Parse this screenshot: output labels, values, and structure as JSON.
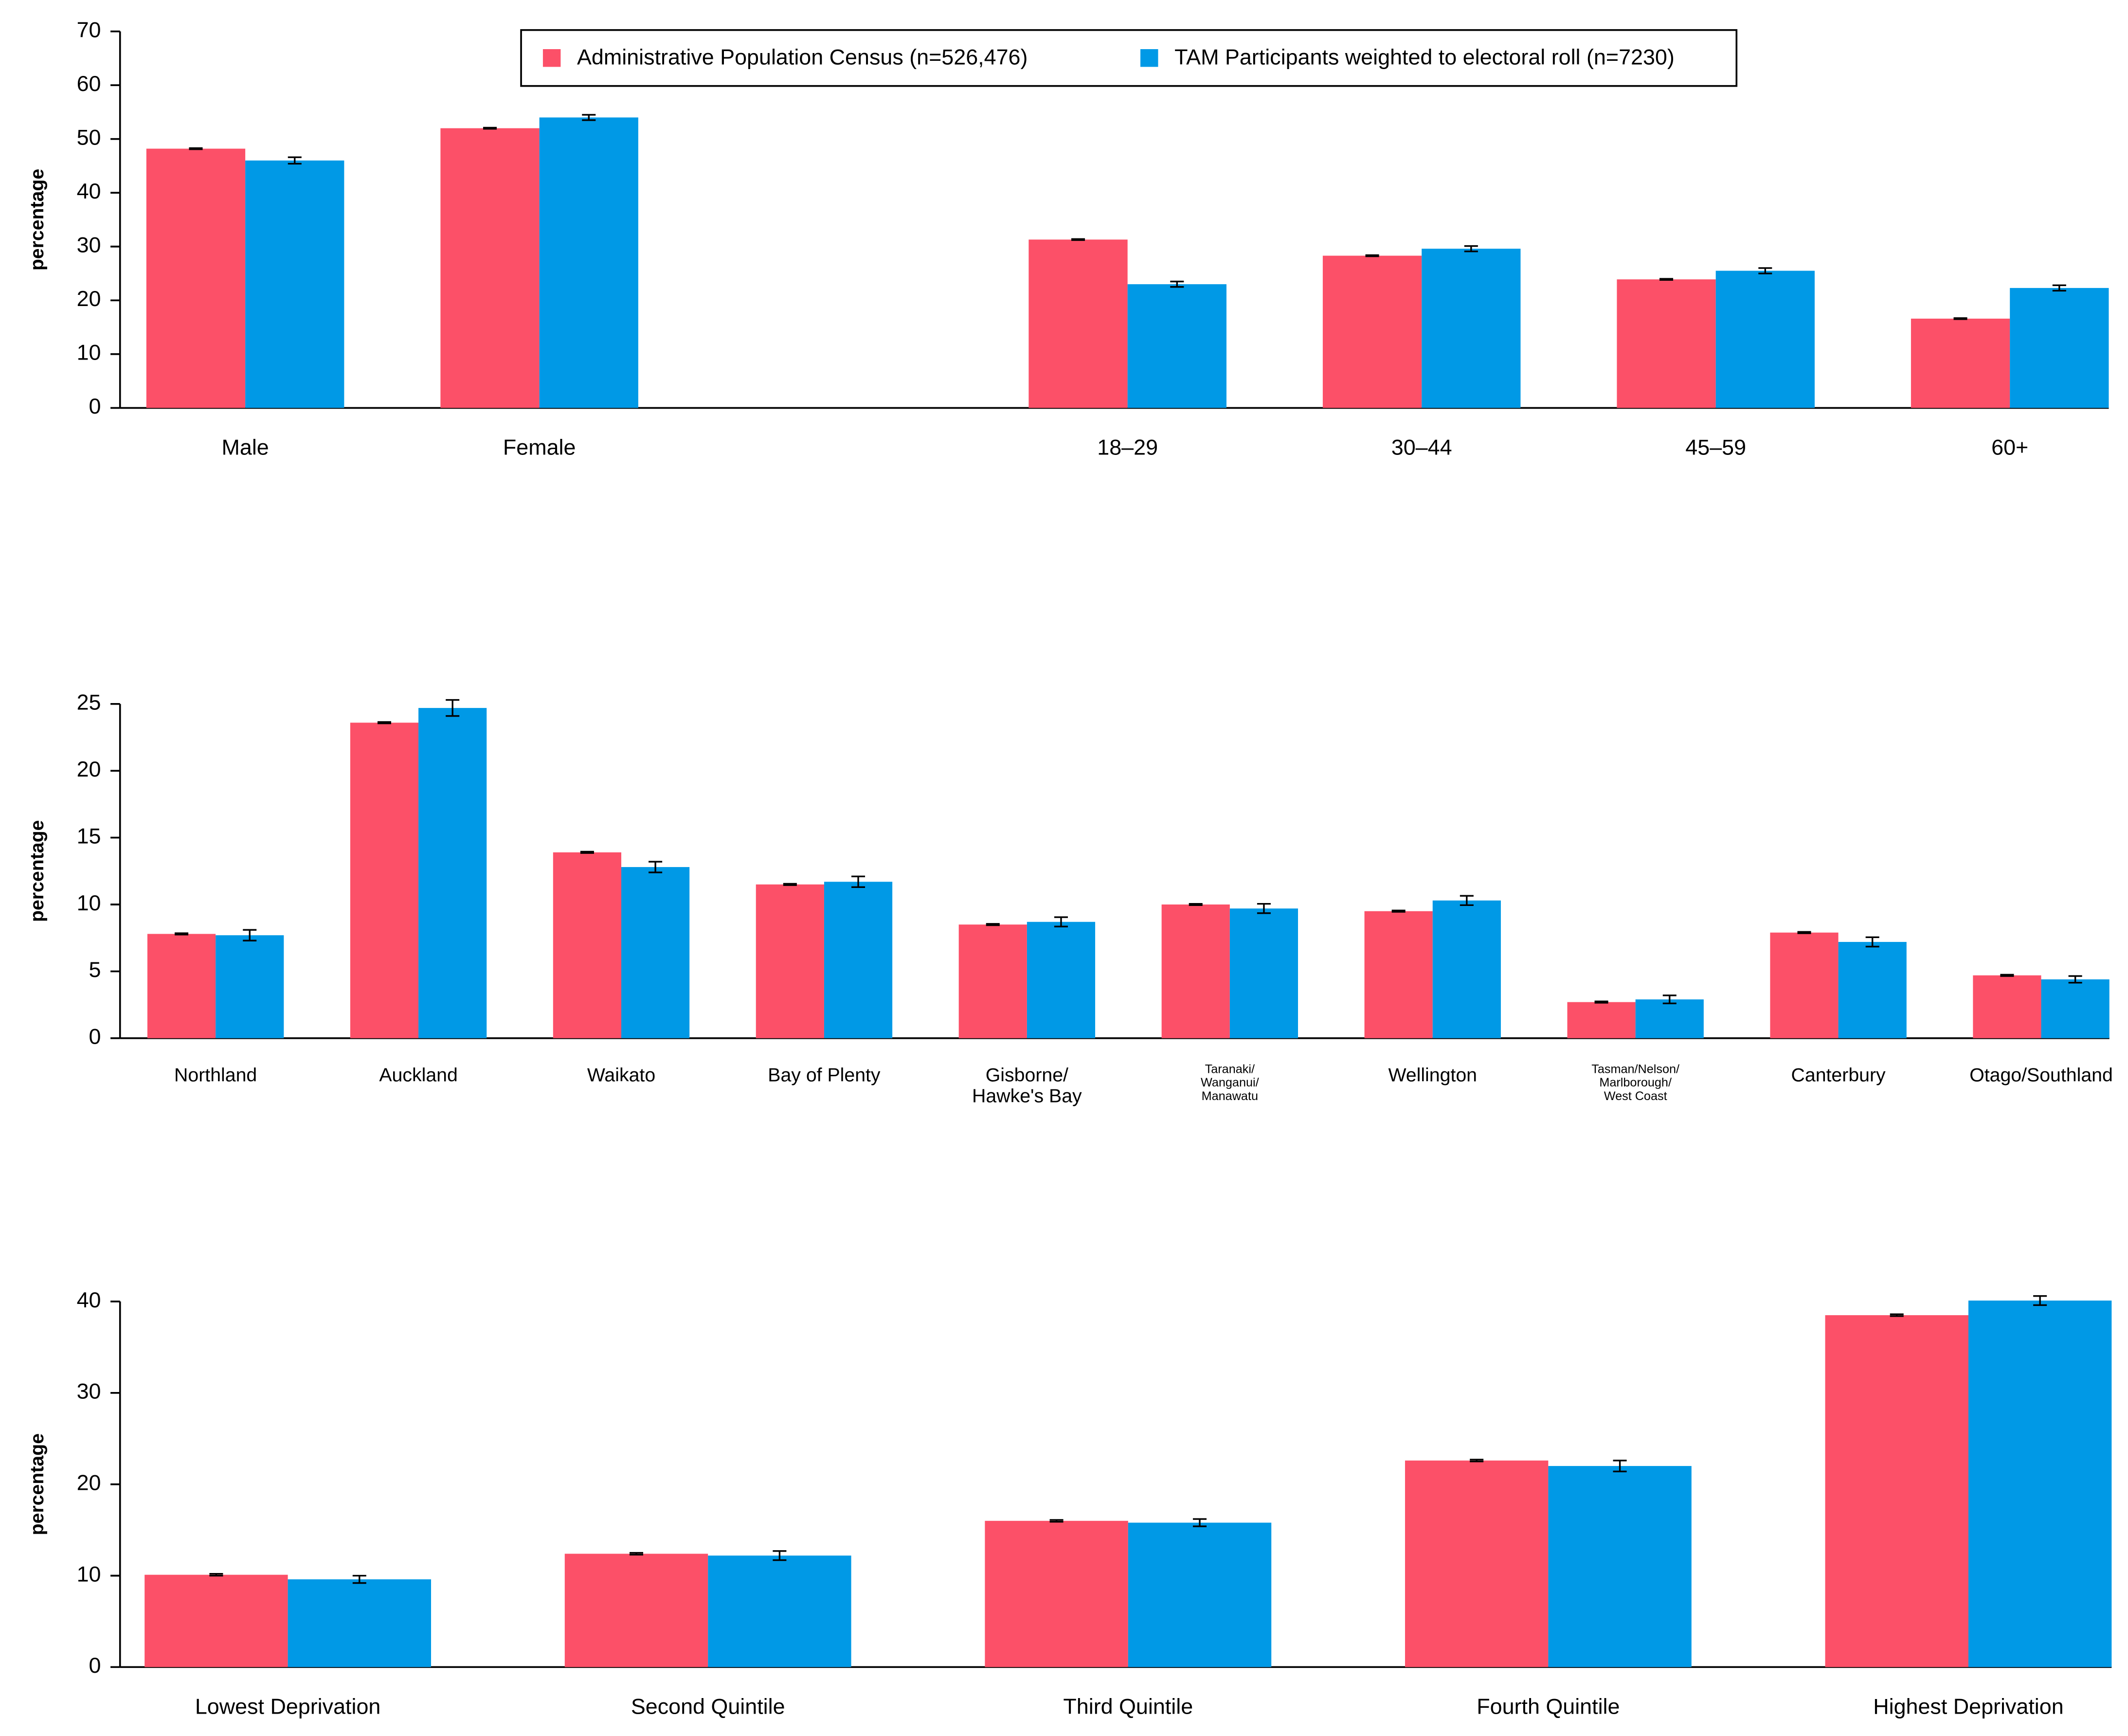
{
  "chart_data": [
    {
      "type": "bar",
      "y_label": "percentage",
      "categories": [
        "Male",
        "Female",
        null,
        "18–29",
        "30–44",
        "45–59",
        "60+"
      ],
      "series": [
        {
          "name": "Administrative Population Census (n=526,476)",
          "color": "#fc5068",
          "values": [
            48.2,
            52,
            null,
            31.3,
            28.3,
            23.9,
            16.6
          ],
          "errors": [
            0.1,
            0.1,
            null,
            0.1,
            0.1,
            0.1,
            0.1
          ]
        },
        {
          "name": "TAM Participants weighted to electoral roll (n=7230)",
          "color": "#0099e6",
          "values": [
            46,
            54,
            null,
            23,
            29.6,
            25.5,
            22.3
          ],
          "errors": [
            0.6,
            0.5,
            null,
            0.5,
            0.5,
            0.5,
            0.5
          ]
        }
      ],
      "ylim": [
        0,
        70
      ],
      "yticks": [
        0,
        10,
        20,
        30,
        40,
        50,
        60,
        70
      ],
      "legend": "top"
    },
    {
      "type": "bar",
      "y_label": "percentage",
      "categories": [
        "Northland",
        "Auckland",
        "Waikato",
        "Bay of Plenty",
        "Gisborne/\nHawke's Bay",
        "Taranaki/\nWanganui/\nManawatu",
        "Wellington",
        "Tasman/Nelson/\nMarlborough/\nWest Coast",
        "Canterbury",
        "Otago/Southland"
      ],
      "series": [
        {
          "name": "Administrative Population Census (n=526,476)",
          "color": "#fc5068",
          "values": [
            7.8,
            23.6,
            13.9,
            11.5,
            8.5,
            10.0,
            9.5,
            2.7,
            7.9,
            4.7
          ],
          "errors": [
            0.05,
            0.05,
            0.05,
            0.05,
            0.05,
            0.05,
            0.05,
            0.05,
            0.05,
            0.05
          ]
        },
        {
          "name": "TAM Participants weighted to electoral roll (n=7230)",
          "color": "#0099e6",
          "values": [
            7.7,
            24.7,
            12.8,
            11.7,
            8.7,
            9.7,
            10.3,
            2.9,
            7.2,
            4.4
          ],
          "errors": [
            0.4,
            0.6,
            0.4,
            0.4,
            0.35,
            0.35,
            0.35,
            0.3,
            0.35,
            0.25
          ]
        }
      ],
      "ylim": [
        0,
        25
      ],
      "yticks": [
        0,
        5,
        10,
        15,
        20,
        25
      ]
    },
    {
      "type": "bar",
      "y_label": "percentage",
      "categories": [
        "Lowest Deprivation",
        "Second Quintile",
        "Third Quintile",
        "Fourth Quintile",
        "Highest Deprivation"
      ],
      "series": [
        {
          "name": "Administrative Population Census (n=526,476)",
          "color": "#fc5068",
          "values": [
            10.1,
            12.4,
            16.0,
            22.6,
            38.5
          ],
          "errors": [
            0.1,
            0.1,
            0.1,
            0.1,
            0.1
          ]
        },
        {
          "name": "TAM Participants weighted to electoral roll (n=7230)",
          "color": "#0099e6",
          "values": [
            9.6,
            12.2,
            15.8,
            22.0,
            40.1
          ],
          "errors": [
            0.4,
            0.5,
            0.4,
            0.6,
            0.5
          ]
        }
      ],
      "ylim": [
        0,
        40
      ],
      "yticks": [
        0,
        10,
        20,
        30,
        40
      ]
    }
  ]
}
